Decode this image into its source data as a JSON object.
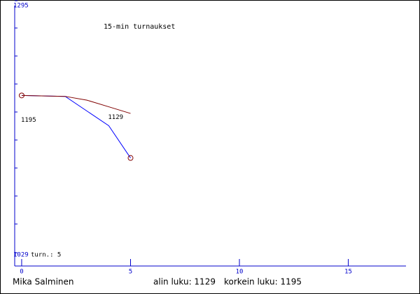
{
  "chart_data": {
    "type": "line",
    "title": "15-min turnaukset",
    "xlim": [
      -0.32,
      17.65
    ],
    "xticks": [
      0,
      5,
      10,
      15
    ],
    "ylim": [
      1029,
      1295
    ],
    "yticks": [
      1029,
      1295
    ],
    "series": [
      {
        "color": "#0000ff",
        "x": [
          0,
          2,
          4,
          5
        ],
        "values": [
          1195,
          1194,
          1163,
          1129
        ]
      },
      {
        "color": "#800000",
        "x": [
          0,
          2,
          3,
          4,
          5
        ],
        "values": [
          1195,
          1194,
          1190,
          1183,
          1176
        ]
      }
    ],
    "annotations": [
      {
        "text": "1195",
        "x": 0,
        "y": 1169
      },
      {
        "text": "1129",
        "x": 4,
        "y": 1172
      }
    ],
    "turns_label": "turn.: 5",
    "footer": {
      "player": "Mika Salminen",
      "lowest": "alin luku: 1129",
      "highest": "korkein luku: 1195"
    }
  }
}
